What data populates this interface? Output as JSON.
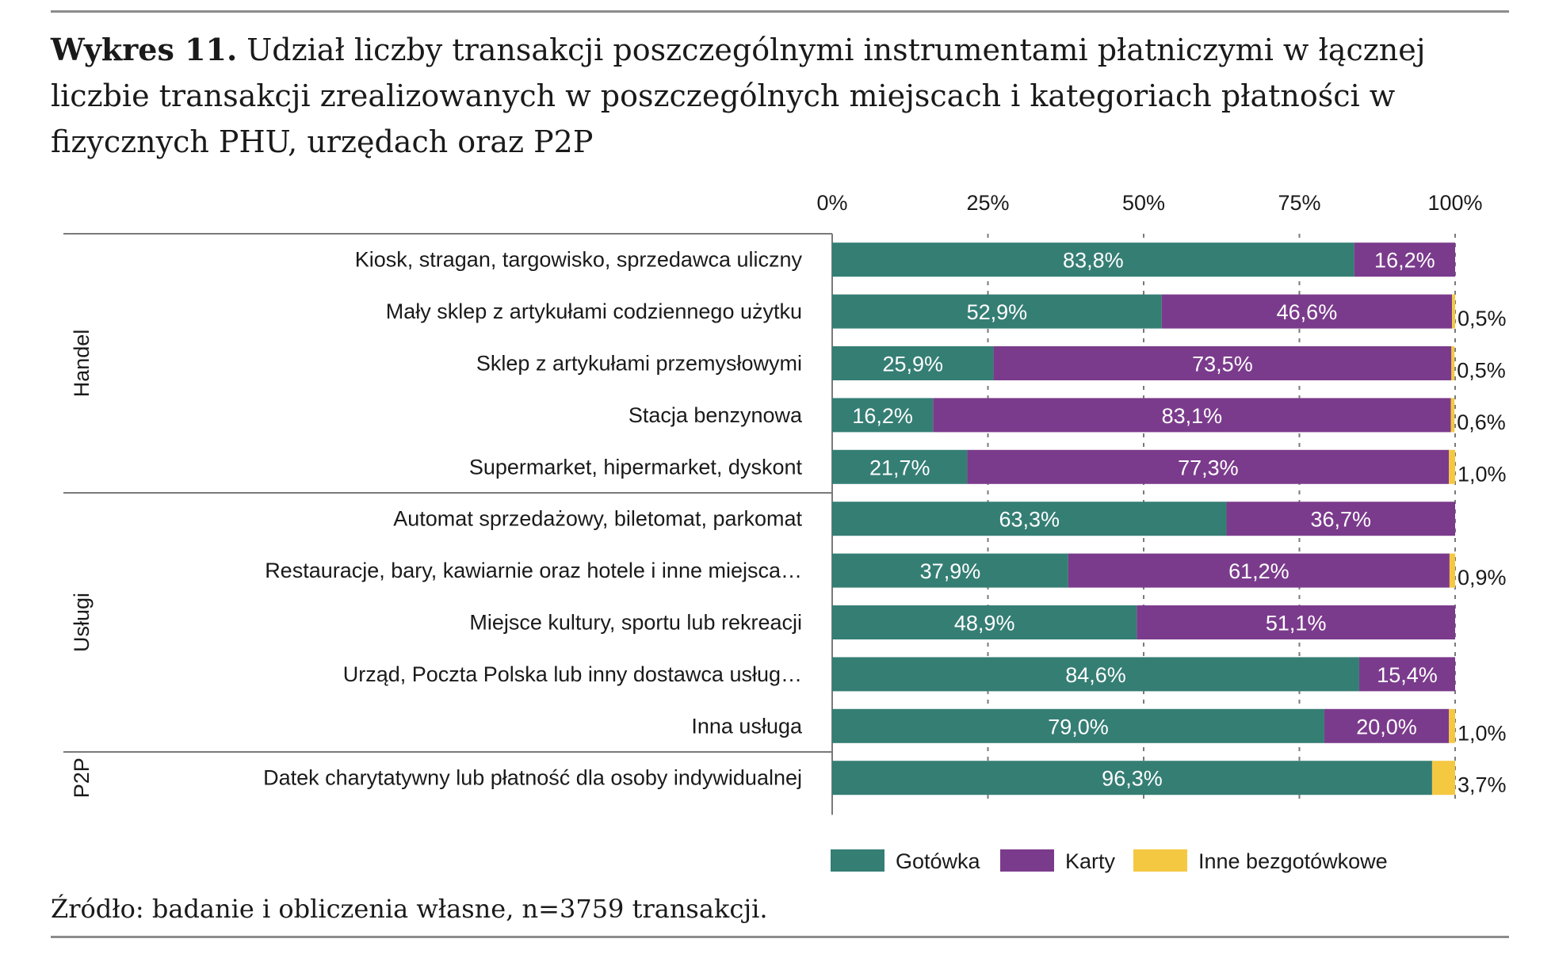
{
  "title": {
    "prefix": "Wykres 11.",
    "text": "Udział liczby transakcji poszczególnymi instrumentami płatniczymi w łącznej liczbie transakcji zrealizowanych w poszczególnych miejscach i kategoriach płatności w fizycznych PHU, urzędach oraz P2P"
  },
  "source": "Źródło: badanie i obliczenia własne, n=3759 transakcji.",
  "chart_data": {
    "type": "bar",
    "orientation": "horizontal",
    "stacked": true,
    "xlim": [
      0,
      100
    ],
    "x_ticks": [
      "0%",
      "25%",
      "50%",
      "75%",
      "100%"
    ],
    "gridlines": "vertical-dashed",
    "legend_position": "bottom",
    "groups": [
      {
        "name": "Handel",
        "count": 5
      },
      {
        "name": "Usługi",
        "count": 5
      },
      {
        "name": "P2P",
        "count": 1
      }
    ],
    "categories": [
      "Kiosk, stragan, targowisko, sprzedawca uliczny",
      "Mały sklep z artykułami codziennego użytku",
      "Sklep z artykułami przemysłowymi",
      "Stacja benzynowa",
      "Supermarket, hipermarket, dyskont",
      "Automat sprzedażowy, biletomat, parkomat",
      "Restauracje, bary, kawiarnie oraz hotele i inne miejsca…",
      "Miejsce kultury, sportu lub rekreacji",
      "Urząd, Poczta Polska lub inny dostawca usług…",
      "Inna usługa",
      "Datek charytatywny lub płatność dla osoby indywidualnej"
    ],
    "series": [
      {
        "name": "Gotówka",
        "color": "#357e74",
        "values": [
          83.8,
          52.9,
          25.9,
          16.2,
          21.7,
          63.3,
          37.9,
          48.9,
          84.6,
          79.0,
          96.3
        ],
        "labels": [
          "83,8%",
          "52,9%",
          "25,9%",
          "16,2%",
          "21,7%",
          "63,3%",
          "37,9%",
          "48,9%",
          "84,6%",
          "79,0%",
          "96,3%"
        ]
      },
      {
        "name": "Karty",
        "color": "#7b3b8c",
        "values": [
          16.2,
          46.6,
          73.5,
          83.1,
          77.3,
          36.7,
          61.2,
          51.1,
          15.4,
          20.0,
          0
        ],
        "labels": [
          "16,2%",
          "46,6%",
          "73,5%",
          "83,1%",
          "77,3%",
          "36,7%",
          "61,2%",
          "51,1%",
          "15,4%",
          "20,0%",
          ""
        ]
      },
      {
        "name": "Inne bezgotówkowe",
        "color": "#f5c842",
        "values": [
          0,
          0.5,
          0.5,
          0.6,
          1.0,
          0,
          0.9,
          0,
          0,
          1.0,
          3.7
        ],
        "labels": [
          "",
          "0,5%",
          "0,5%",
          "0,6%",
          "1,0%",
          "",
          "0,9%",
          "",
          "",
          "1,0%",
          "3,7%"
        ]
      }
    ]
  }
}
